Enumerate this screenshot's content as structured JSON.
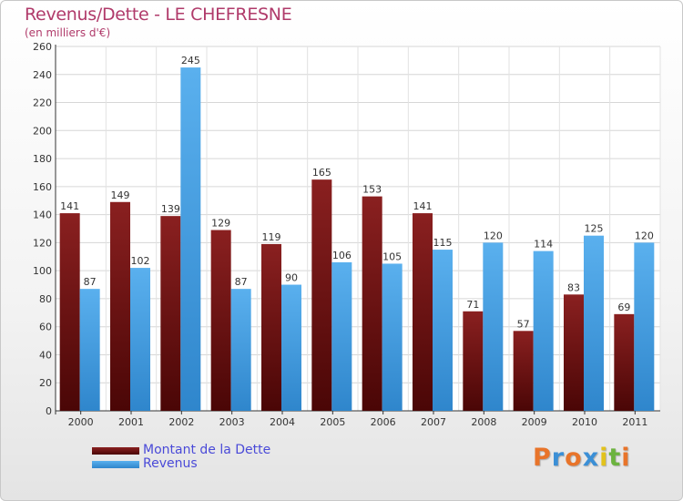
{
  "chart_data": {
    "type": "bar",
    "title": "Revenus/Dette - LE CHEFRESNE",
    "subtitle": "(en milliers d'€)",
    "categories": [
      "2000",
      "2001",
      "2002",
      "2003",
      "2004",
      "2005",
      "2006",
      "2007",
      "2008",
      "2009",
      "2010",
      "2011"
    ],
    "series": [
      {
        "name": "Montant de la Dette",
        "color": "#7a1414",
        "values": [
          141,
          149,
          139,
          129,
          119,
          165,
          153,
          141,
          71,
          57,
          83,
          69
        ]
      },
      {
        "name": "Revenus",
        "color": "#4aa3e6",
        "values": [
          87,
          102,
          245,
          87,
          90,
          106,
          105,
          115,
          120,
          114,
          125,
          120
        ]
      }
    ],
    "ylim": [
      0,
      260
    ],
    "yticks": [
      0,
      20,
      40,
      60,
      80,
      100,
      120,
      140,
      160,
      180,
      200,
      220,
      240,
      260
    ],
    "grid": true,
    "legend_position": "bottom-left"
  },
  "logo": {
    "letters": [
      {
        "ch": "P",
        "color": "#e8742a"
      },
      {
        "ch": "r",
        "color": "#3b8fd6"
      },
      {
        "ch": "o",
        "color": "#e8742a"
      },
      {
        "ch": "x",
        "color": "#3b8fd6"
      },
      {
        "ch": "i",
        "color": "#e2c21c"
      },
      {
        "ch": "t",
        "color": "#6cb33f"
      },
      {
        "ch": "i",
        "color": "#e8742a"
      }
    ]
  }
}
